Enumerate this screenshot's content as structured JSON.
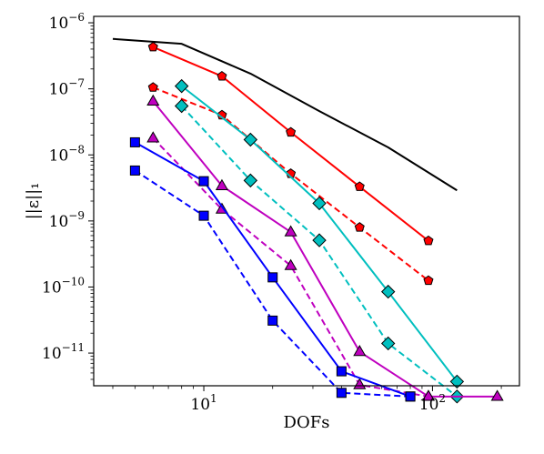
{
  "chart_data": {
    "type": "line",
    "xscale": "log",
    "yscale": "log",
    "xlim": [
      3.3,
      240
    ],
    "ylim": [
      3.2e-12,
      1.25e-06
    ],
    "xlabel": "DOFs",
    "ylabel": "||ε||₁",
    "x_ticks": [
      {
        "value": 10,
        "base": "10",
        "exp": "1"
      },
      {
        "value": 100,
        "base": "10",
        "exp": "2"
      }
    ],
    "y_ticks": [
      {
        "value": 1e-06,
        "base": "10",
        "exp": "−6"
      },
      {
        "value": 1e-07,
        "base": "10",
        "exp": "−7"
      },
      {
        "value": 1e-08,
        "base": "10",
        "exp": "−8"
      },
      {
        "value": 1e-09,
        "base": "10",
        "exp": "−9"
      },
      {
        "value": 1e-10,
        "base": "10",
        "exp": "−10"
      },
      {
        "value": 1e-11,
        "base": "10",
        "exp": "−11"
      }
    ],
    "grid": false,
    "legend": false,
    "series": [
      {
        "color": "#000000",
        "dash": false,
        "marker": "none",
        "x": [
          4,
          8,
          16,
          32,
          64,
          128
        ],
        "y": [
          5.7e-07,
          4.8e-07,
          1.7e-07,
          4.6e-08,
          1.3e-08,
          2.9e-09
        ]
      },
      {
        "color": "#ff0000",
        "dash": false,
        "marker": "pentagon",
        "x": [
          6,
          12,
          24,
          48,
          96
        ],
        "y": [
          4.3e-07,
          1.55e-07,
          2.2e-08,
          3.3e-09,
          5e-10
        ]
      },
      {
        "color": "#ff0000",
        "dash": true,
        "marker": "pentagon",
        "x": [
          6,
          12,
          24,
          48,
          96
        ],
        "y": [
          1.05e-07,
          4e-08,
          5.2e-09,
          8e-10,
          1.25e-10
        ]
      },
      {
        "color": "#00bfbf",
        "dash": false,
        "marker": "diamond",
        "x": [
          8,
          16,
          32,
          64,
          128
        ],
        "y": [
          1.1e-07,
          1.7e-08,
          1.85e-09,
          8.5e-11,
          3.7e-12
        ]
      },
      {
        "color": "#00bfbf",
        "dash": true,
        "marker": "diamond",
        "x": [
          8,
          16,
          32,
          64,
          128
        ],
        "y": [
          5.5e-08,
          4.1e-09,
          5.1e-10,
          1.4e-11,
          2.2e-12
        ]
      },
      {
        "color": "#bf00bf",
        "dash": false,
        "marker": "triangle",
        "x": [
          6,
          12,
          24,
          48,
          96,
          192
        ],
        "y": [
          6.5e-08,
          3.4e-09,
          6.8e-10,
          1.05e-11,
          2.2e-12,
          2.2e-12
        ]
      },
      {
        "color": "#bf00bf",
        "dash": true,
        "marker": "triangle",
        "x": [
          6,
          12,
          24,
          48,
          96
        ],
        "y": [
          1.8e-08,
          1.5e-09,
          2.1e-10,
          3.3e-12,
          2.2e-12
        ]
      },
      {
        "color": "#0000ff",
        "dash": false,
        "marker": "square",
        "x": [
          5,
          10,
          20,
          40,
          80
        ],
        "y": [
          1.55e-08,
          4e-09,
          1.4e-10,
          5.3e-12,
          2.2e-12
        ]
      },
      {
        "color": "#0000ff",
        "dash": true,
        "marker": "square",
        "x": [
          5,
          10,
          20,
          40,
          80
        ],
        "y": [
          5.8e-09,
          1.2e-09,
          3.1e-11,
          2.5e-12,
          2.2e-12
        ]
      }
    ]
  }
}
